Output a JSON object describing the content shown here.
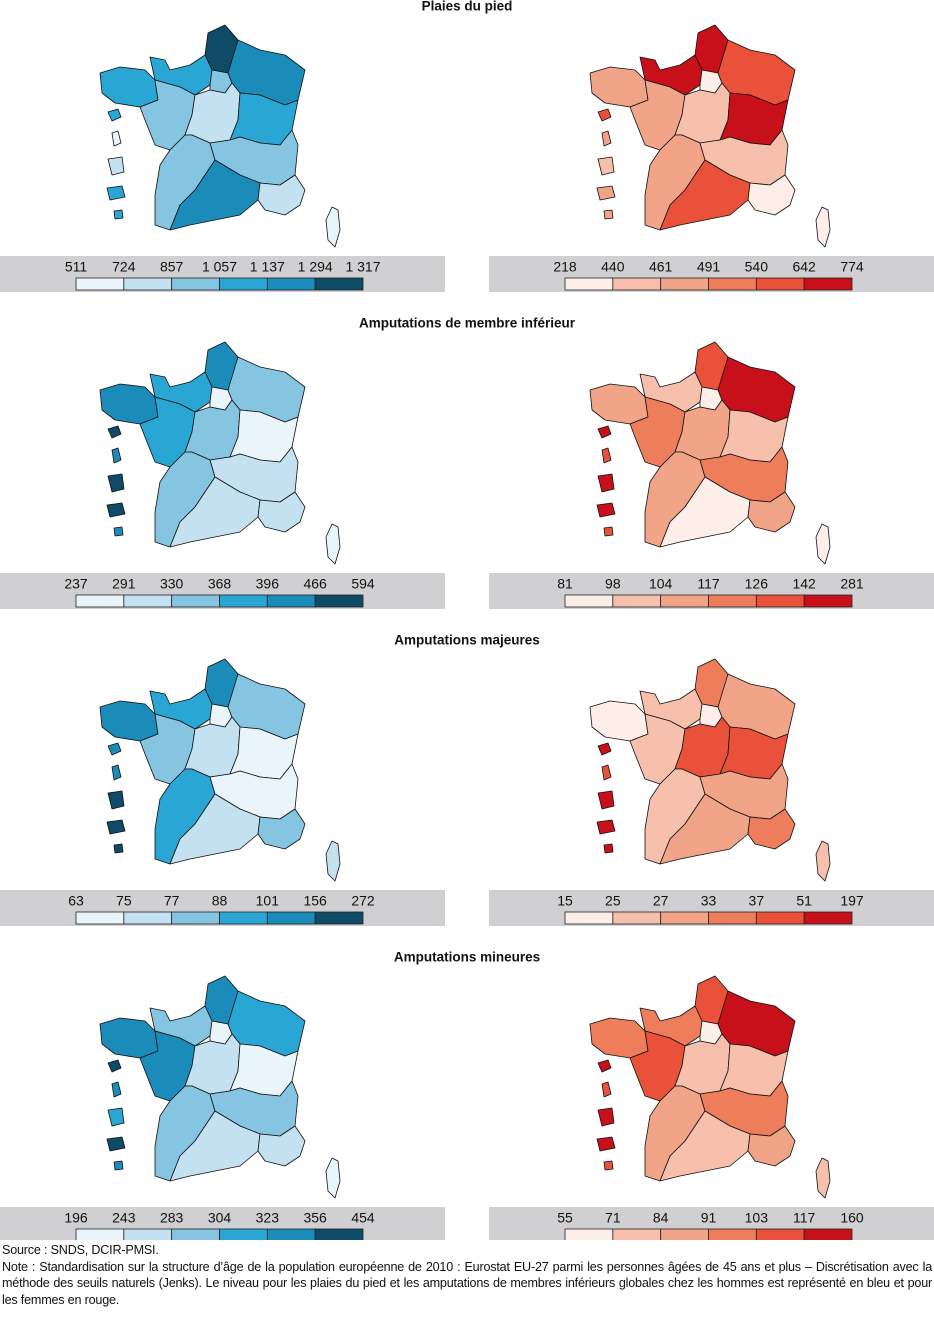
{
  "rows": [
    {
      "title": "Plaies du pied",
      "panels": [
        {
          "palette": [
            "#e9f5fa",
            "#c3e1f0",
            "#86c5e2",
            "#2aa6d4",
            "#1b8cba",
            "#0e4b66"
          ],
          "legend": [
            511,
            724,
            857,
            {
              "value": 1057,
              "label": "1 057"
            },
            {
              "value": 1137,
              "label": "1 137"
            },
            {
              "value": 1294,
              "label": "1 294"
            },
            {
              "value": 1317,
              "label": "1 317"
            }
          ],
          "region_colors": [
            "#0e4b66",
            "#2aa6d4",
            "#86c5e2",
            "#1b8cba",
            "#2aa6d4",
            "#86c5e2",
            "#c3e1f0",
            "#2aa6d4",
            "#86c5e2",
            "#86c5e2",
            "#1b8cba",
            "#c3e1f0",
            "#e9f5fa",
            "#2aa6d4",
            "#e9f5fa",
            "#c3e1f0",
            "#2aa6d4",
            "#2aa6d4"
          ]
        },
        {
          "palette": [
            "#fdeee9",
            "#f6c0ad",
            "#f2a488",
            "#ee7d5c",
            "#e9513a",
            "#c8101a"
          ],
          "legend": [
            218,
            440,
            461,
            491,
            540,
            642,
            774
          ],
          "region_colors": [
            "#c8101a",
            "#c8101a",
            "#fdeee9",
            "#e9513a",
            "#f2a488",
            "#f2a488",
            "#f6c0ad",
            "#c8101a",
            "#f2a488",
            "#f6c0ad",
            "#e9513a",
            "#fdeee9",
            "#fdeee9",
            "#e9513a",
            "#f2a488",
            "#f6c0ad",
            "#f2a488",
            "#f2a488"
          ]
        }
      ]
    },
    {
      "title": "Amputations de membre inférieur",
      "panels": [
        {
          "palette": [
            "#e9f5fa",
            "#c3e1f0",
            "#86c5e2",
            "#2aa6d4",
            "#1b8cba",
            "#0e4b66"
          ],
          "legend": [
            237,
            291,
            330,
            368,
            396,
            466,
            594
          ],
          "region_colors": [
            "#1b8cba",
            "#2aa6d4",
            "#e9f5fa",
            "#86c5e2",
            "#1b8cba",
            "#2aa6d4",
            "#86c5e2",
            "#e9f5fa",
            "#86c5e2",
            "#c3e1f0",
            "#c3e1f0",
            "#c3e1f0",
            "#e9f5fa",
            "#0e4b66",
            "#1b8cba",
            "#0e4b66",
            "#0e4b66",
            "#1b8cba"
          ]
        },
        {
          "palette": [
            "#fdeee9",
            "#f6c0ad",
            "#f2a488",
            "#ee7d5c",
            "#e9513a",
            "#c8101a"
          ],
          "legend": [
            81,
            98,
            104,
            117,
            126,
            142,
            281
          ],
          "region_colors": [
            "#e9513a",
            "#f6c0ad",
            "#fdeee9",
            "#c8101a",
            "#f2a488",
            "#ee7d5c",
            "#f2a488",
            "#f6c0ad",
            "#f2a488",
            "#ee7d5c",
            "#fdeee9",
            "#f2a488",
            "#fdeee9",
            "#c8101a",
            "#e9513a",
            "#c8101a",
            "#c8101a",
            "#e9513a"
          ]
        }
      ]
    },
    {
      "title": "Amputations majeures",
      "panels": [
        {
          "palette": [
            "#e9f5fa",
            "#c3e1f0",
            "#86c5e2",
            "#2aa6d4",
            "#1b8cba",
            "#0e4b66"
          ],
          "legend": [
            63,
            75,
            77,
            88,
            101,
            156,
            272
          ],
          "region_colors": [
            "#1b8cba",
            "#2aa6d4",
            "#e9f5fa",
            "#86c5e2",
            "#1b8cba",
            "#86c5e2",
            "#c3e1f0",
            "#e9f5fa",
            "#2aa6d4",
            "#e9f5fa",
            "#c3e1f0",
            "#86c5e2",
            "#c3e1f0",
            "#1b8cba",
            "#1b8cba",
            "#0e4b66",
            "#0e4b66",
            "#0e4b66"
          ]
        },
        {
          "palette": [
            "#fdeee9",
            "#f6c0ad",
            "#f2a488",
            "#ee7d5c",
            "#e9513a",
            "#c8101a"
          ],
          "legend": [
            15,
            25,
            27,
            33,
            37,
            51,
            197
          ],
          "region_colors": [
            "#ee7d5c",
            "#f6c0ad",
            "#fdeee9",
            "#f2a488",
            "#fdeee9",
            "#f6c0ad",
            "#e9513a",
            "#e9513a",
            "#f6c0ad",
            "#f2a488",
            "#f2a488",
            "#ee7d5c",
            "#f6c0ad",
            "#c8101a",
            "#e9513a",
            "#c8101a",
            "#c8101a",
            "#c8101a"
          ]
        }
      ]
    },
    {
      "title": "Amputations mineures",
      "panels": [
        {
          "palette": [
            "#e9f5fa",
            "#c3e1f0",
            "#86c5e2",
            "#2aa6d4",
            "#1b8cba",
            "#0e4b66"
          ],
          "legend": [
            196,
            243,
            283,
            304,
            323,
            356,
            454
          ],
          "region_colors": [
            "#1b8cba",
            "#86c5e2",
            "#e9f5fa",
            "#2aa6d4",
            "#1b8cba",
            "#1b8cba",
            "#c3e1f0",
            "#e9f5fa",
            "#86c5e2",
            "#86c5e2",
            "#c3e1f0",
            "#c3e1f0",
            "#e9f5fa",
            "#0e4b66",
            "#1b8cba",
            "#2aa6d4",
            "#0e4b66",
            "#1b8cba"
          ]
        },
        {
          "palette": [
            "#fdeee9",
            "#f6c0ad",
            "#f2a488",
            "#ee7d5c",
            "#e9513a",
            "#c8101a"
          ],
          "legend": [
            55,
            71,
            84,
            91,
            103,
            117,
            160
          ],
          "region_colors": [
            "#e9513a",
            "#ee7d5c",
            "#fdeee9",
            "#c8101a",
            "#ee7d5c",
            "#e9513a",
            "#f6c0ad",
            "#f6c0ad",
            "#f2a488",
            "#ee7d5c",
            "#f6c0ad",
            "#f2a488",
            "#f6c0ad",
            "#c8101a",
            "#e9513a",
            "#c8101a",
            "#c8101a",
            "#e9513a"
          ]
        }
      ]
    }
  ],
  "footer": {
    "source": "Source : SNDS, DCIR-PMSI.",
    "note": "Note : Standardisation sur la structure d’âge de la population européenne de 2010 : Eurostat EU-27 parmi les personnes âgées de 45 ans et plus – Discrétisation avec la méthode des seuils naturels (Jenks). Le niveau pour les plaies du pied et les amputations de membres inférieurs globales chez les hommes est représenté en bleu et pour les femmes en rouge."
  }
}
